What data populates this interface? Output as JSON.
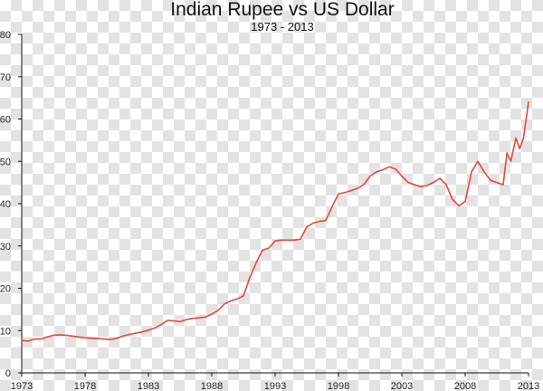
{
  "chart_data": {
    "type": "line",
    "title": "Indian Rupee vs US Dollar",
    "subtitle": "1973 - 2013",
    "xlabel": "",
    "ylabel": "",
    "xlim": [
      1973,
      2013
    ],
    "ylim": [
      0,
      80
    ],
    "x_ticks": [
      1973,
      1978,
      1983,
      1988,
      1993,
      1998,
      2003,
      2008,
      2013
    ],
    "y_ticks": [
      0,
      10,
      20,
      30,
      40,
      50,
      60,
      70,
      80
    ],
    "grid": false,
    "legend": "none",
    "line_color": "#e5473c",
    "series": [
      {
        "x": [
          1973.0,
          1973.5,
          1974.0,
          1974.5,
          1975.0,
          1975.5,
          1976.0,
          1976.5,
          1977.0,
          1977.5,
          1978.0,
          1978.5,
          1979.0,
          1979.5,
          1980.0,
          1980.5,
          1981.0,
          1981.5,
          1982.0,
          1982.5,
          1983.0,
          1983.5,
          1984.0,
          1984.5,
          1985.0,
          1985.5,
          1986.0,
          1986.5,
          1987.0,
          1987.5,
          1988.0,
          1988.5,
          1989.0,
          1989.5,
          1990.0,
          1990.5,
          1991.0,
          1991.5,
          1992.0,
          1992.5,
          1993.0,
          1993.5,
          1994.0,
          1994.5,
          1995.0,
          1995.5,
          1996.0,
          1996.5,
          1997.0,
          1997.5,
          1998.0,
          1998.5,
          1999.0,
          1999.5,
          2000.0,
          2000.5,
          2001.0,
          2001.5,
          2002.0,
          2002.5,
          2003.0,
          2003.5,
          2004.0,
          2004.5,
          2005.0,
          2005.5,
          2006.0,
          2006.5,
          2007.0,
          2007.5,
          2008.0,
          2008.5,
          2009.0,
          2009.5,
          2010.0,
          2010.5,
          2011.0,
          2011.3,
          2011.6,
          2012.0,
          2012.3,
          2012.6,
          2013.0
        ],
        "y": [
          7.7,
          7.5,
          8.0,
          8.0,
          8.5,
          8.9,
          9.0,
          8.9,
          8.7,
          8.5,
          8.3,
          8.2,
          8.1,
          8.0,
          7.9,
          8.2,
          8.7,
          9.1,
          9.4,
          9.7,
          10.1,
          10.6,
          11.4,
          12.4,
          12.3,
          12.1,
          12.6,
          12.9,
          13.0,
          13.2,
          13.9,
          14.8,
          16.3,
          17.0,
          17.5,
          18.2,
          22.5,
          26.0,
          29.0,
          29.5,
          31.2,
          31.4,
          31.4,
          31.4,
          31.6,
          34.5,
          35.4,
          35.8,
          36.0,
          39.3,
          42.3,
          42.6,
          43.1,
          43.6,
          44.5,
          46.5,
          47.5,
          48.0,
          48.7,
          48.2,
          46.5,
          45.0,
          44.5,
          44.0,
          44.3,
          45.0,
          46.0,
          44.5,
          41.0,
          39.5,
          40.5,
          47.5,
          50.0,
          47.5,
          45.5,
          45.0,
          44.5,
          52.0,
          50.0,
          55.5,
          53.0,
          55.5,
          64.0
        ]
      }
    ]
  }
}
